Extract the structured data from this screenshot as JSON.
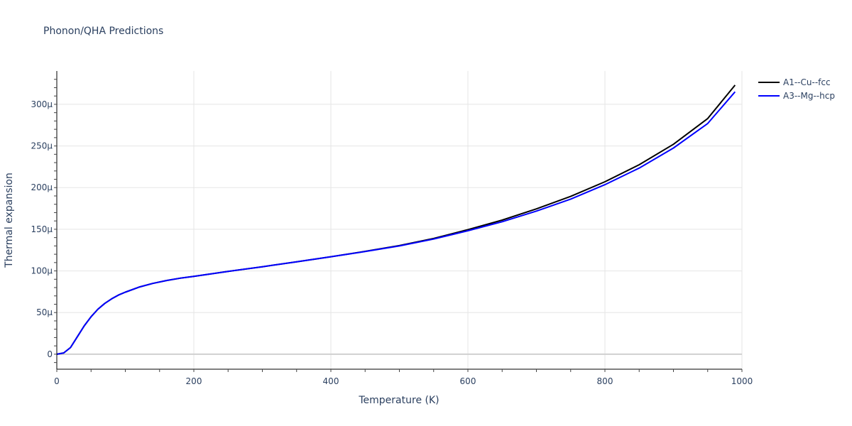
{
  "chart_title": "Phonon/QHA Predictions",
  "legend": [
    {
      "label": "A1--Cu--fcc",
      "color": "#000000"
    },
    {
      "label": "A3--Mg--hcp",
      "color": "#0000ff"
    }
  ],
  "axes": {
    "x": {
      "title": "Temperature (K)",
      "ticks": [
        "0",
        "200",
        "400",
        "600",
        "800",
        "1000"
      ]
    },
    "y": {
      "title": "Thermal expansion",
      "ticks": [
        "0",
        "50μ",
        "100μ",
        "150μ",
        "200μ",
        "250μ",
        "300μ"
      ]
    }
  },
  "chart_data": {
    "type": "line",
    "title": "Phonon/QHA Predictions",
    "xlabel": "Temperature (K)",
    "ylabel": "Thermal expansion",
    "xlim": [
      0,
      1000
    ],
    "ylim": [
      -1.8e-05,
      0.00034
    ],
    "grid": true,
    "legend_position": "right-top",
    "x": [
      0,
      10,
      20,
      30,
      40,
      50,
      60,
      70,
      80,
      90,
      100,
      120,
      140,
      160,
      180,
      200,
      250,
      300,
      350,
      400,
      450,
      500,
      550,
      600,
      650,
      700,
      750,
      800,
      850,
      900,
      950,
      990
    ],
    "series": [
      {
        "name": "A1--Cu--fcc",
        "color": "#000000",
        "values": [
          0,
          1.5e-06,
          8e-06,
          2.1e-05,
          3.4e-05,
          4.5e-05,
          5.4e-05,
          6.1e-05,
          6.65e-05,
          7.1e-05,
          7.45e-05,
          8.05e-05,
          8.5e-05,
          8.85e-05,
          9.13e-05,
          9.35e-05,
          9.95e-05,
          0.000105,
          0.000111,
          0.000117,
          0.0001235,
          0.0001305,
          0.000139,
          0.0001495,
          0.000161,
          0.0001745,
          0.0001895,
          0.000207,
          0.0002275,
          0.000252,
          0.000283,
          0.000323
        ]
      },
      {
        "name": "A3--Mg--hcp",
        "color": "#0000ff",
        "values": [
          0,
          1.5e-06,
          8e-06,
          2.1e-05,
          3.4e-05,
          4.5e-05,
          5.4e-05,
          6.1e-05,
          6.65e-05,
          7.1e-05,
          7.45e-05,
          8.05e-05,
          8.5e-05,
          8.85e-05,
          9.13e-05,
          9.35e-05,
          9.95e-05,
          0.000105,
          0.000111,
          0.000117,
          0.0001232,
          0.00013,
          0.0001382,
          0.0001482,
          0.000159,
          0.0001718,
          0.0001862,
          0.0002035,
          0.0002235,
          0.0002475,
          0.000277,
          0.000315
        ]
      }
    ]
  }
}
